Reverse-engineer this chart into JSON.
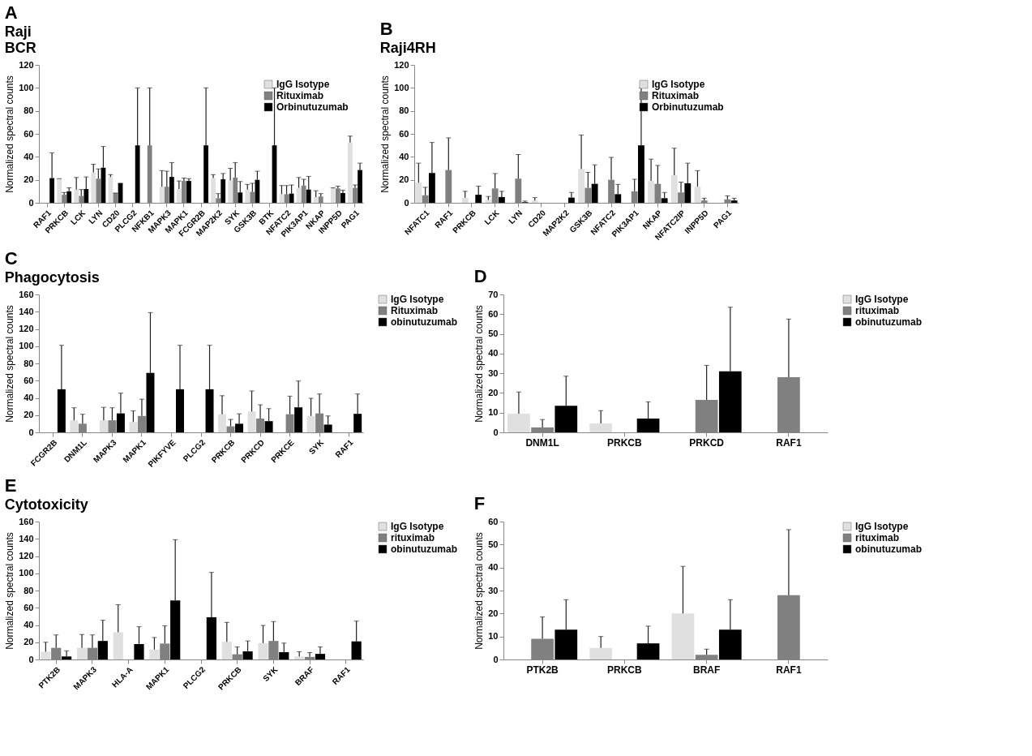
{
  "chart_data": [
    {
      "type": "bar",
      "title": "A",
      "annotations": [
        "Raji",
        "BCR"
      ],
      "ylabel": "Normalized spectral counts",
      "ylim": [
        0,
        120
      ],
      "yticks": [
        0,
        20,
        40,
        60,
        80,
        100,
        120
      ],
      "grid": false,
      "legend": "top right",
      "categories": [
        "RAF1",
        "PRKCB",
        "LCK",
        "LYN",
        "CD20",
        "PLCG2",
        "NFKB1",
        "MAPK3",
        "MAPK1",
        "FCGR2B",
        "MAP2K2",
        "SYK",
        "GSK3B",
        "BTK",
        "NFATC2",
        "PIK3AP1",
        "NKAP",
        "INPP5D",
        "PAG1"
      ],
      "series": [
        {
          "name": "IgG Isotype",
          "color": "#e0e0e0",
          "values": [
            0,
            21,
            11.5,
            26.5,
            22.5,
            0,
            0,
            14,
            12,
            0,
            21.5,
            19.5,
            11.5,
            0,
            7.5,
            13,
            5,
            12.5,
            52.5
          ],
          "errors": [
            null,
            [
              21,
              21
            ],
            [
              11.5,
              22
            ],
            [
              26.5,
              33.5
            ],
            [
              22.5,
              24.5
            ],
            null,
            null,
            [
              14,
              28
            ],
            [
              12,
              19
            ],
            null,
            [
              21.5,
              24.5
            ],
            [
              19.5,
              30
            ],
            [
              11.5,
              16
            ],
            null,
            [
              7.5,
              15
            ],
            [
              13,
              22
            ],
            [
              5,
              10.5
            ],
            [
              12.5,
              13
            ],
            [
              52.5,
              58
            ]
          ]
        },
        {
          "name": "Rituximab",
          "color": "#808080",
          "values": [
            0,
            7,
            6,
            21,
            8.5,
            0,
            50,
            14,
            19,
            0,
            4,
            22,
            9.5,
            0,
            7.5,
            15,
            5.5,
            12.5,
            13
          ],
          "errors": [
            null,
            [
              7,
              9
            ],
            [
              6,
              11.5
            ],
            [
              21,
              29.5
            ],
            [
              8.5,
              8.5
            ],
            null,
            [
              50,
              100
            ],
            [
              14,
              27.5
            ],
            [
              19,
              21.5
            ],
            null,
            [
              4,
              8
            ],
            [
              22,
              35
            ],
            [
              9.5,
              17
            ],
            null,
            [
              7.5,
              15
            ],
            [
              15,
              20.5
            ],
            [
              5.5,
              8
            ],
            [
              12.5,
              14.5
            ],
            [
              13,
              15.5
            ]
          ]
        },
        {
          "name": "Orbinutuzumab",
          "color": "#000000",
          "values": [
            21.5,
            10,
            12,
            30.5,
            17,
            50,
            0,
            22.5,
            19,
            50,
            20.5,
            9,
            20,
            50,
            8,
            11.5,
            0,
            8.5,
            28.5
          ],
          "errors": [
            [
              21.5,
              43.5
            ],
            [
              10,
              13
            ],
            [
              12,
              22.5
            ],
            [
              30.5,
              49
            ],
            [
              17,
              17
            ],
            [
              50,
              100
            ],
            null,
            [
              22.5,
              35
            ],
            [
              19,
              21
            ],
            [
              50,
              100
            ],
            [
              20.5,
              25.5
            ],
            [
              9,
              18.5
            ],
            [
              20,
              27.5
            ],
            [
              50,
              100
            ],
            [
              8,
              15.5
            ],
            [
              11.5,
              23
            ],
            null,
            [
              8.5,
              11
            ],
            [
              28.5,
              34.5
            ]
          ]
        }
      ]
    },
    {
      "type": "bar",
      "title": "B",
      "annotations": [
        "Raji4RH"
      ],
      "ylabel": "Normalized spectral counts",
      "ylim": [
        0,
        120
      ],
      "yticks": [
        0,
        20,
        40,
        60,
        80,
        100,
        120
      ],
      "grid": false,
      "legend": "top right",
      "categories": [
        "NFATC1",
        "RAF1",
        "PRKCB",
        "LCK",
        "LYN",
        "CD20",
        "MAP2K2",
        "GSK3B",
        "NFATC2",
        "PIK3AP1",
        "NKAP",
        "NFATC2IP",
        "INPP5D",
        "PAG1"
      ],
      "series": [
        {
          "name": "IgG Isotype",
          "color": "#e0e0e0",
          "values": [
            17.5,
            0,
            4.5,
            2.5,
            0,
            2,
            0,
            29.5,
            0,
            0,
            19,
            24,
            14,
            0
          ],
          "errors": [
            [
              17.5,
              34.5
            ],
            null,
            [
              4.5,
              10
            ],
            [
              2.5,
              5.5
            ],
            null,
            [
              2,
              4.5
            ],
            null,
            [
              29.5,
              59
            ],
            null,
            null,
            [
              19,
              38
            ],
            [
              24,
              47.5
            ],
            [
              14,
              28
            ],
            null
          ]
        },
        {
          "name": "Rituximab",
          "color": "#808080",
          "values": [
            6.5,
            28.5,
            0,
            12.5,
            21,
            0,
            0,
            13,
            20,
            10,
            16.5,
            9,
            2,
            3
          ],
          "errors": [
            [
              6.5,
              13.5
            ],
            [
              28.5,
              56.5
            ],
            null,
            [
              12.5,
              25.5
            ],
            [
              21,
              42
            ],
            null,
            null,
            [
              13,
              26.5
            ],
            [
              20,
              39.5
            ],
            [
              10,
              20.5
            ],
            [
              16.5,
              32.5
            ],
            [
              9,
              18
            ],
            [
              2,
              4
            ],
            [
              3,
              6
            ]
          ]
        },
        {
          "name": "Orbinutuzumab",
          "color": "#000000",
          "values": [
            26,
            0,
            7,
            5,
            0.5,
            0,
            4.5,
            16.5,
            7.5,
            50,
            4,
            17,
            0,
            2
          ],
          "errors": [
            [
              26,
              52.5
            ],
            null,
            [
              7,
              14.5
            ],
            [
              5,
              10
            ],
            [
              0.5,
              1.5
            ],
            null,
            [
              4.5,
              9
            ],
            [
              16.5,
              33
            ],
            [
              7.5,
              16
            ],
            [
              50,
              100
            ],
            [
              4,
              9
            ],
            [
              17,
              34.5
            ],
            null,
            [
              2,
              4
            ]
          ]
        }
      ]
    },
    {
      "type": "bar",
      "title": "C",
      "annotations": [
        "Phagocytosis"
      ],
      "ylabel": "Normalized spectral counts",
      "ylim": [
        0,
        160
      ],
      "yticks": [
        0,
        20,
        40,
        60,
        80,
        100,
        120,
        140,
        160
      ],
      "grid": false,
      "legend": "right",
      "categories": [
        "FCGR2B",
        "DNM1L",
        "MAPK3",
        "MAPK1",
        "PIKFYVE",
        "PLCG2",
        "PRKCB",
        "PRKCD",
        "PRKCE",
        "SYK",
        "RAF1"
      ],
      "series": [
        {
          "name": "IgG Isotype",
          "color": "#e0e0e0",
          "values": [
            0,
            14,
            14,
            12,
            0,
            0,
            21,
            24,
            0,
            19,
            0
          ],
          "errors": [
            null,
            [
              14,
              28.5
            ],
            [
              14,
              29
            ],
            [
              12,
              25
            ],
            null,
            null,
            [
              21,
              42.5
            ],
            [
              24,
              48
            ],
            null,
            [
              19,
              39.5
            ],
            null
          ]
        },
        {
          "name": "Rituximab",
          "color": "#808080",
          "values": [
            0,
            10,
            14,
            19,
            0,
            0,
            7,
            16,
            21,
            22,
            0
          ],
          "errors": [
            null,
            [
              10,
              21
            ],
            [
              14,
              28.5
            ],
            [
              19,
              38.5
            ],
            null,
            null,
            [
              7,
              15
            ],
            [
              16,
              32
            ],
            [
              21,
              42
            ],
            [
              22,
              44.5
            ],
            null
          ]
        },
        {
          "name": "obinutuzumab",
          "color": "#000000",
          "values": [
            50,
            0,
            22,
            69,
            50,
            50,
            10,
            13,
            29,
            9,
            21.5
          ],
          "errors": [
            [
              50,
              101
            ],
            null,
            [
              22,
              45.5
            ],
            [
              69,
              139
            ],
            [
              50,
              101
            ],
            [
              50,
              101
            ],
            [
              10,
              21.5
            ],
            [
              13,
              27.5
            ],
            [
              29,
              59.5
            ],
            [
              9,
              19
            ],
            [
              21.5,
              44.5
            ]
          ]
        }
      ]
    },
    {
      "type": "bar",
      "title": "D",
      "ylabel": "Normalized spectral counts",
      "ylim": [
        0,
        70
      ],
      "yticks": [
        0,
        10,
        20,
        30,
        40,
        50,
        60,
        70
      ],
      "grid": false,
      "legend": "right",
      "categories": [
        "DNM1L",
        "PRKCB",
        "PRKCD",
        "RAF1"
      ],
      "series": [
        {
          "name": "IgG Isotype",
          "color": "#e0e0e0",
          "values": [
            9.5,
            4.5,
            0,
            0
          ],
          "errors": [
            [
              9.5,
              20.5
            ],
            [
              4.5,
              11
            ],
            null,
            null
          ]
        },
        {
          "name": "rituximab",
          "color": "#808080",
          "values": [
            2.5,
            0,
            16.5,
            28
          ],
          "errors": [
            [
              2.5,
              6.5
            ],
            null,
            [
              16.5,
              34
            ],
            [
              28,
              57.5
            ]
          ]
        },
        {
          "name": "obinutuzumab",
          "color": "#000000",
          "values": [
            13.5,
            7,
            31,
            0
          ],
          "errors": [
            [
              13.5,
              28.5
            ],
            [
              7,
              15.5
            ],
            [
              31,
              63.5
            ],
            null
          ]
        }
      ]
    },
    {
      "type": "bar",
      "title": "E",
      "annotations": [
        "Cytotoxicity"
      ],
      "ylabel": "Normalized spectral counts",
      "ylim": [
        0,
        160
      ],
      "yticks": [
        0,
        20,
        40,
        60,
        80,
        100,
        120,
        140,
        160
      ],
      "grid": false,
      "legend": "right",
      "categories": [
        "PTK2B",
        "MAPK3",
        "HLA-A",
        "MAPK1",
        "PLCG2",
        "PRKCB",
        "SYK",
        "BRAF",
        "RAF1"
      ],
      "series": [
        {
          "name": "IgG Isotype",
          "color": "#e0e0e0",
          "values": [
            9,
            13.5,
            31.5,
            11.5,
            0,
            20.5,
            19,
            3.5,
            0
          ],
          "errors": [
            [
              9,
              20
            ],
            [
              13.5,
              29
            ],
            [
              31.5,
              63.5
            ],
            [
              11.5,
              25.5
            ],
            null,
            [
              20.5,
              43
            ],
            [
              19,
              39.5
            ],
            [
              3.5,
              9
            ],
            null
          ]
        },
        {
          "name": "rituximab",
          "color": "#808080",
          "values": [
            13.5,
            13.5,
            0,
            18.5,
            0,
            6,
            21.5,
            3,
            0
          ],
          "errors": [
            [
              13.5,
              28.5
            ],
            [
              13.5,
              28.5
            ],
            null,
            [
              18.5,
              39
            ],
            null,
            [
              6,
              14.5
            ],
            [
              21.5,
              44
            ],
            [
              3,
              8
            ],
            null
          ]
        },
        {
          "name": "obinutuzumab",
          "color": "#000000",
          "values": [
            3.5,
            21.5,
            18,
            68.5,
            49,
            9.5,
            8.5,
            6.5,
            21
          ],
          "errors": [
            [
              3.5,
              10
            ],
            [
              21.5,
              45.5
            ],
            [
              18,
              38
            ],
            [
              68.5,
              139
            ],
            [
              49,
              101
            ],
            [
              9.5,
              21.5
            ],
            [
              8.5,
              19
            ],
            [
              6.5,
              14.5
            ],
            [
              21,
              44.5
            ]
          ]
        }
      ]
    },
    {
      "type": "bar",
      "title": "F",
      "ylabel": "Normalized spectral counts",
      "ylim": [
        0,
        60
      ],
      "yticks": [
        0,
        10,
        20,
        30,
        40,
        50,
        60
      ],
      "grid": false,
      "legend": "right",
      "categories": [
        "PTK2B",
        "PRKCB",
        "BRAF",
        "RAF1"
      ],
      "series": [
        {
          "name": "IgG Isotype",
          "color": "#e0e0e0",
          "values": [
            0,
            5,
            20,
            0
          ],
          "errors": [
            null,
            [
              5,
              10
            ],
            [
              20,
              40.5
            ],
            null
          ]
        },
        {
          "name": "rituximab",
          "color": "#808080",
          "values": [
            9,
            0,
            2,
            28
          ],
          "errors": [
            [
              9,
              18.5
            ],
            null,
            [
              2,
              4.5
            ],
            [
              28,
              56.5
            ]
          ]
        },
        {
          "name": "obinutuzumab",
          "color": "#000000",
          "values": [
            13,
            7,
            13,
            0
          ],
          "errors": [
            [
              13,
              26
            ],
            [
              7,
              14.5
            ],
            [
              13,
              26
            ],
            null
          ]
        }
      ]
    }
  ]
}
